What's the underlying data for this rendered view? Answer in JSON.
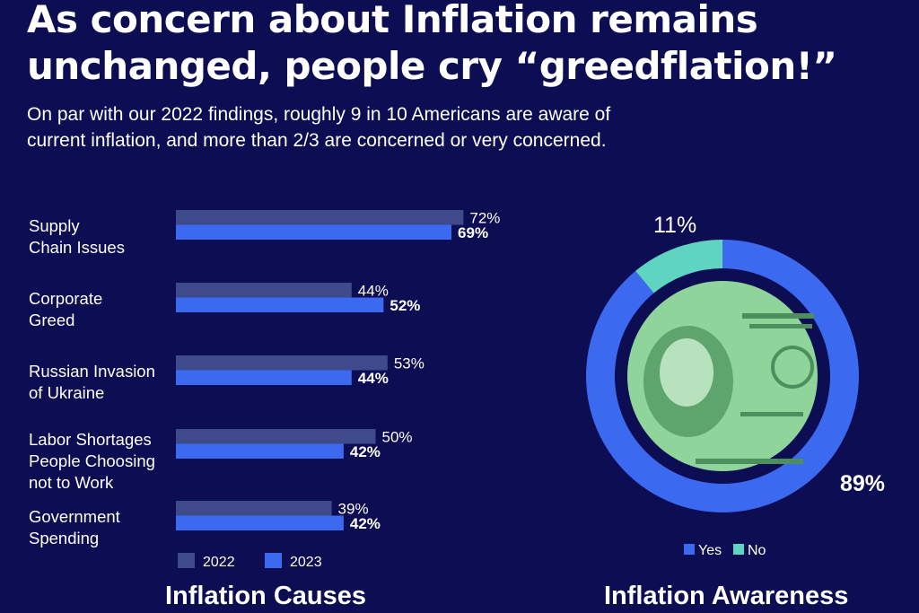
{
  "header": {
    "title_line1": "As concern about Inflation remains",
    "title_line2": "unchanged, people cry “greedflation!”",
    "subtitle_line1": "On par with our 2022 findings, roughly 9 in 10 Americans are aware of",
    "subtitle_line2": "current inflation, and more than 2/3 are concerned or very concerned."
  },
  "colors": {
    "background": "#0c0d52",
    "bar_2022": "#3e4a8c",
    "bar_2023": "#3b69f0",
    "donut_yes": "#3b69f0",
    "donut_no": "#5fd4c0",
    "money_green": "#8fd49a"
  },
  "sections": {
    "causes_title": "Inflation Causes",
    "awareness_title": "Inflation Awareness"
  },
  "chart_data": [
    {
      "type": "bar",
      "orientation": "horizontal",
      "title": "Inflation Causes",
      "categories": [
        [
          "Supply",
          "Chain Issues"
        ],
        [
          "Corporate",
          "Greed"
        ],
        [
          "Russian Invasion",
          "of Ukraine"
        ],
        [
          "Labor Shortages",
          "People Choosing",
          "not to Work"
        ],
        [
          "Government",
          "Spending"
        ]
      ],
      "series": [
        {
          "name": "2022",
          "values": [
            72,
            44,
            53,
            50,
            39
          ],
          "labels": [
            "72%",
            "44%",
            "53%",
            "50%",
            "39%"
          ]
        },
        {
          "name": "2023",
          "values": [
            69,
            52,
            44,
            42,
            42
          ],
          "labels": [
            "69%",
            "52%",
            "44%",
            "42%",
            "42%"
          ]
        }
      ],
      "xlim": [
        0,
        100
      ],
      "legend": "bottom-left",
      "grid": false
    },
    {
      "type": "pie",
      "variant": "donut",
      "title": "Inflation Awareness",
      "labels": [
        "Yes",
        "No"
      ],
      "values": [
        89,
        11
      ],
      "value_labels": [
        "89%",
        "11%"
      ],
      "legend": "bottom",
      "center_image": "dollar-bill-franklin"
    }
  ]
}
